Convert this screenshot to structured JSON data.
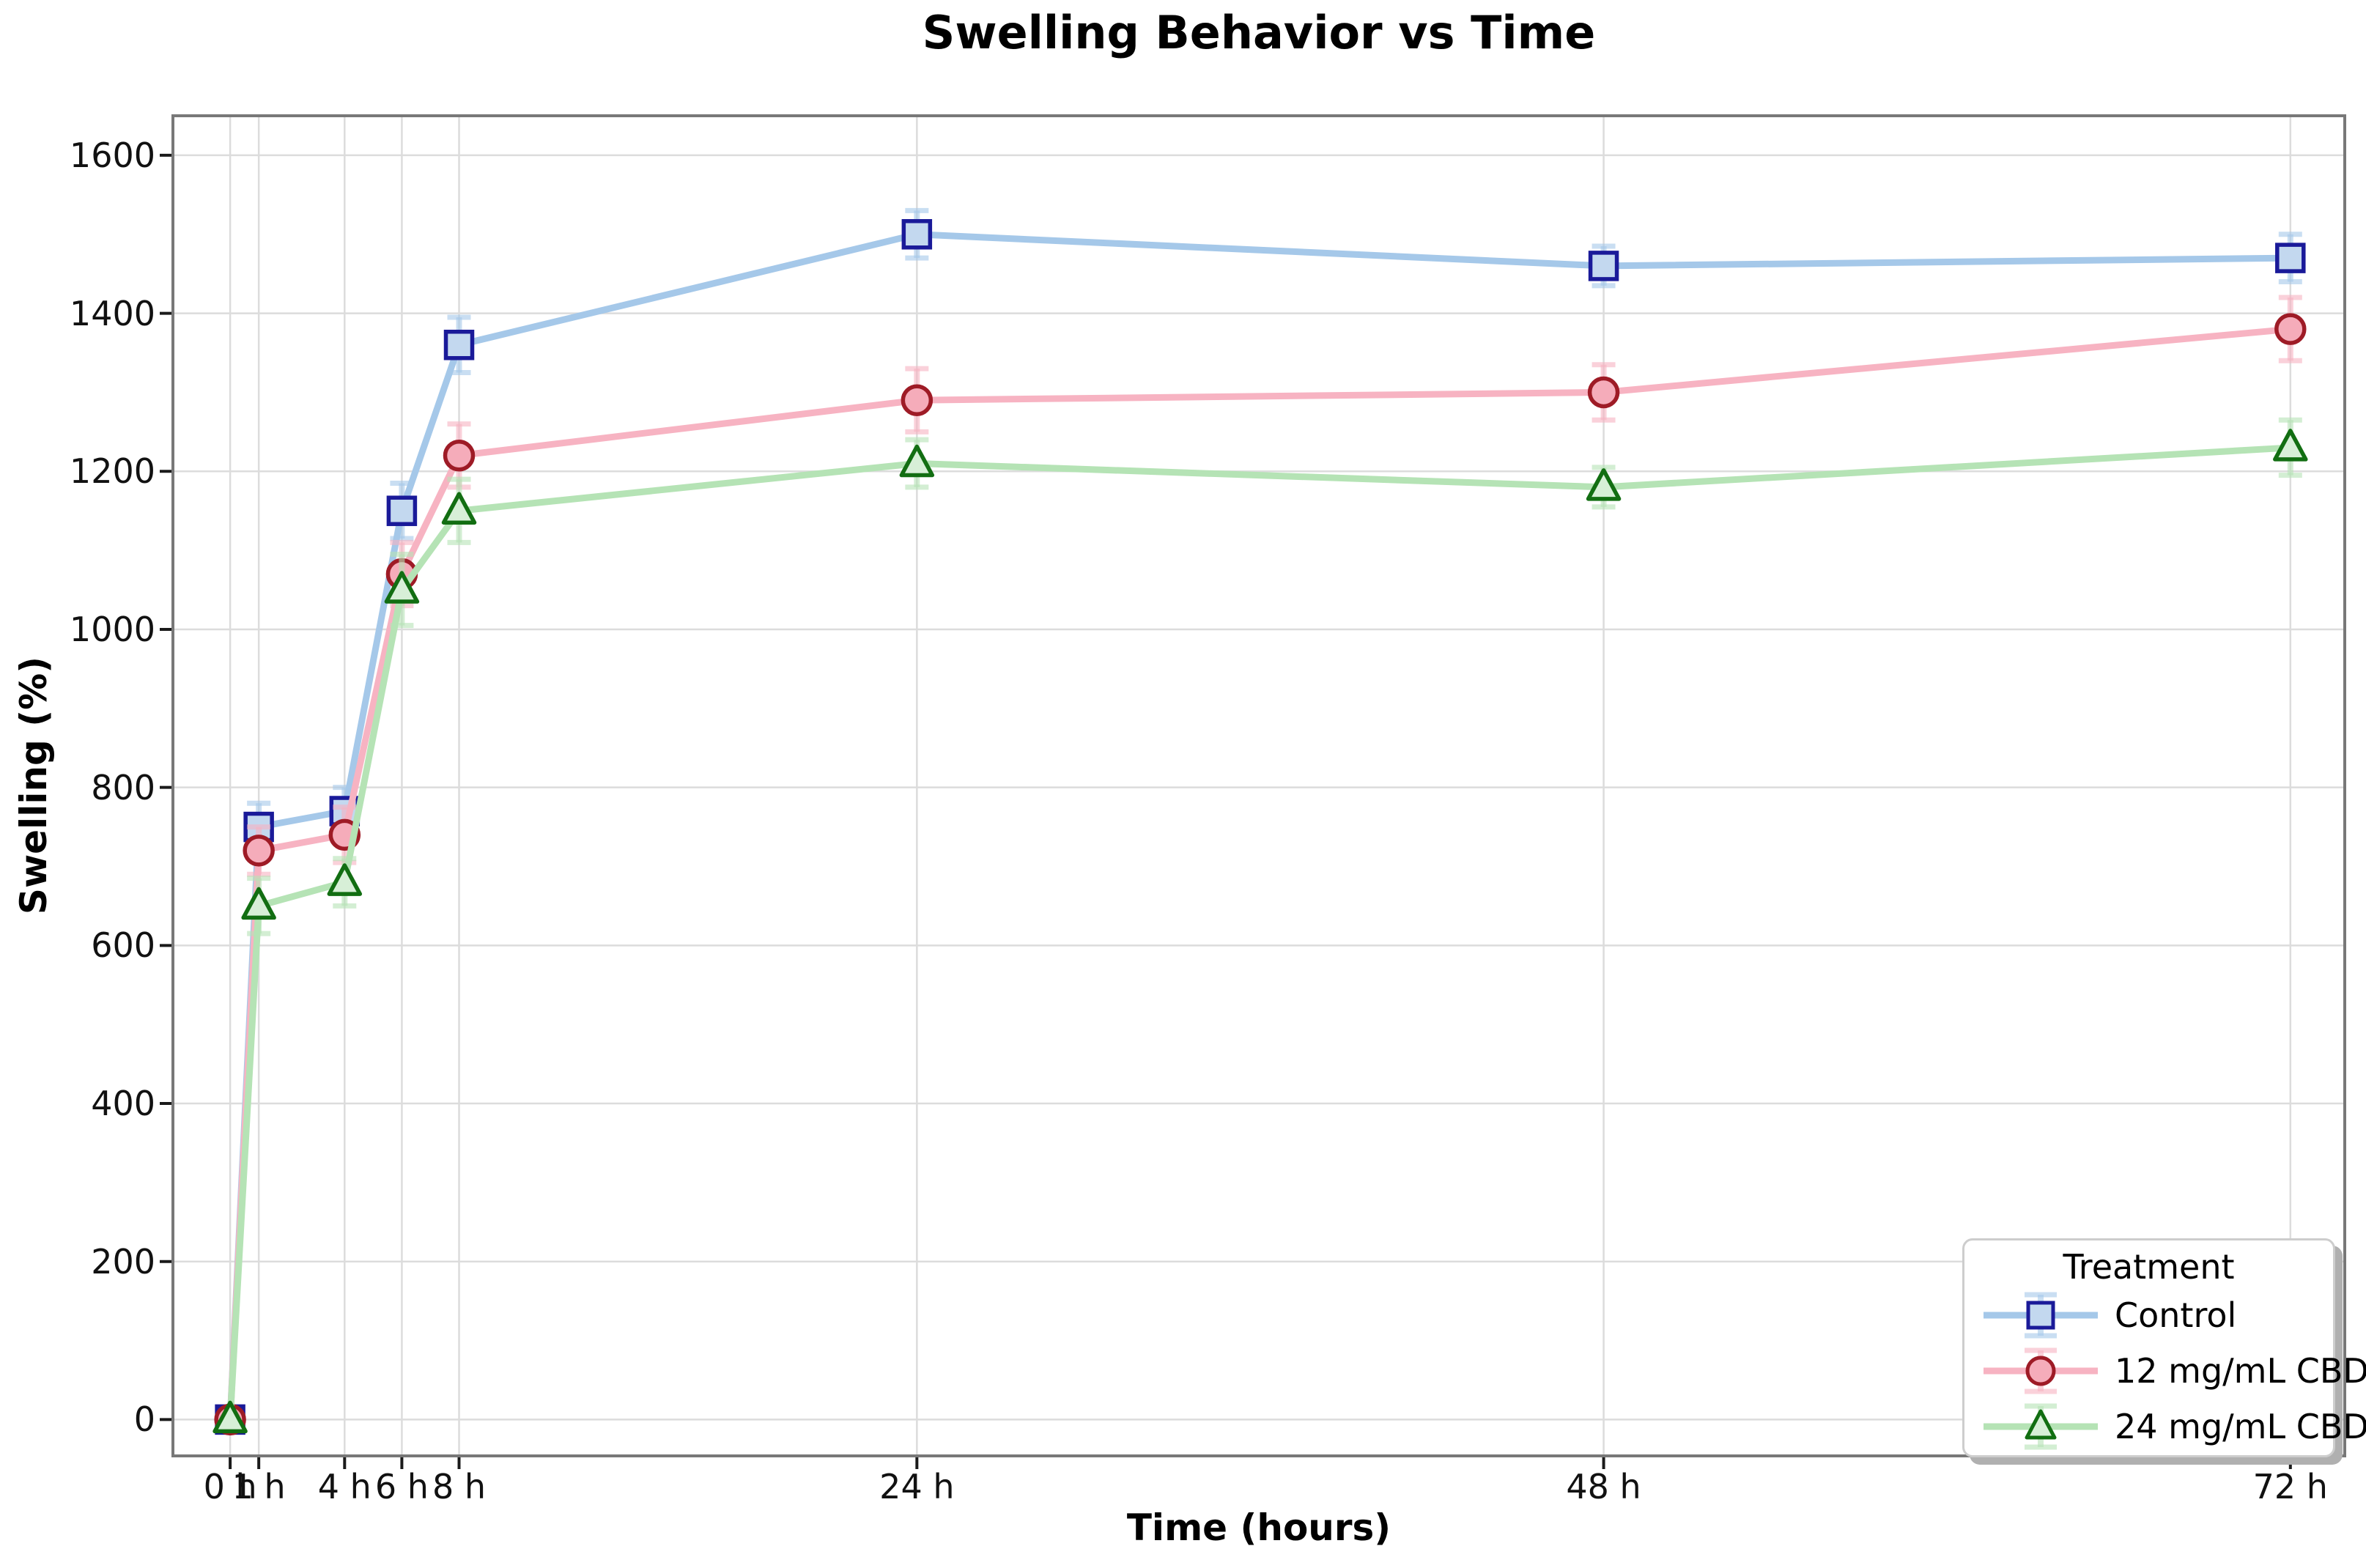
{
  "title": "Swelling Behavior vs Time",
  "x_axis": {
    "label": "Time (hours)",
    "tick_values": [
      0,
      1,
      4,
      6,
      8,
      24,
      48,
      72
    ],
    "tick_labels": [
      "0 h",
      "1 h",
      "4 h",
      "6 h",
      "8 h",
      "24 h",
      "48 h",
      "72 h"
    ]
  },
  "y_axis": {
    "label": "Swelling (%)",
    "tick_values": [
      0,
      200,
      400,
      600,
      800,
      1000,
      1200,
      1400,
      1600
    ],
    "tick_labels": [
      "0",
      "200",
      "400",
      "600",
      "800",
      "1000",
      "1200",
      "1400",
      "1600"
    ]
  },
  "legend": {
    "title": "Treatment",
    "position": "lower right"
  },
  "chart_data": {
    "type": "line",
    "title": "Swelling Behavior vs Time",
    "xlabel": "Time (hours)",
    "ylabel": "Swelling (%)",
    "x": [
      0,
      1,
      4,
      6,
      8,
      24,
      48,
      72
    ],
    "x_tick_labels": [
      "0 h",
      "1 h",
      "4 h",
      "6 h",
      "8 h",
      "24 h",
      "48 h",
      "72 h"
    ],
    "xlim": [
      -2,
      73.9
    ],
    "ylim": [
      -46,
      1650
    ],
    "grid": true,
    "legend_position": "lower right",
    "series": [
      {
        "name": "Control",
        "marker": "square",
        "line_color": "#a5c8e9",
        "edge_color": "#1a1a99",
        "fill_color": "#c3d8ef",
        "values": [
          0,
          750,
          770,
          1150,
          1360,
          1500,
          1460,
          1470
        ],
        "errors": [
          0,
          30,
          30,
          35,
          35,
          30,
          25,
          30
        ]
      },
      {
        "name": "12 mg/mL CBD",
        "marker": "circle",
        "line_color": "#f7b3c2",
        "edge_color": "#9e1b26",
        "fill_color": "#f5acba",
        "values": [
          0,
          720,
          740,
          1070,
          1220,
          1290,
          1300,
          1380
        ],
        "errors": [
          0,
          30,
          35,
          40,
          40,
          40,
          35,
          40
        ]
      },
      {
        "name": "24 mg/mL CBD",
        "marker": "triangle",
        "line_color": "#b5e3b5",
        "edge_color": "#126e12",
        "fill_color": "#d7efd7",
        "values": [
          0,
          650,
          680,
          1050,
          1150,
          1210,
          1180,
          1230
        ],
        "errors": [
          0,
          35,
          30,
          45,
          40,
          30,
          25,
          35
        ]
      }
    ],
    "style": {
      "grid_color": "#dcdcdc",
      "spine_color": "#787878",
      "tick_color": "#1a1a1a"
    }
  }
}
